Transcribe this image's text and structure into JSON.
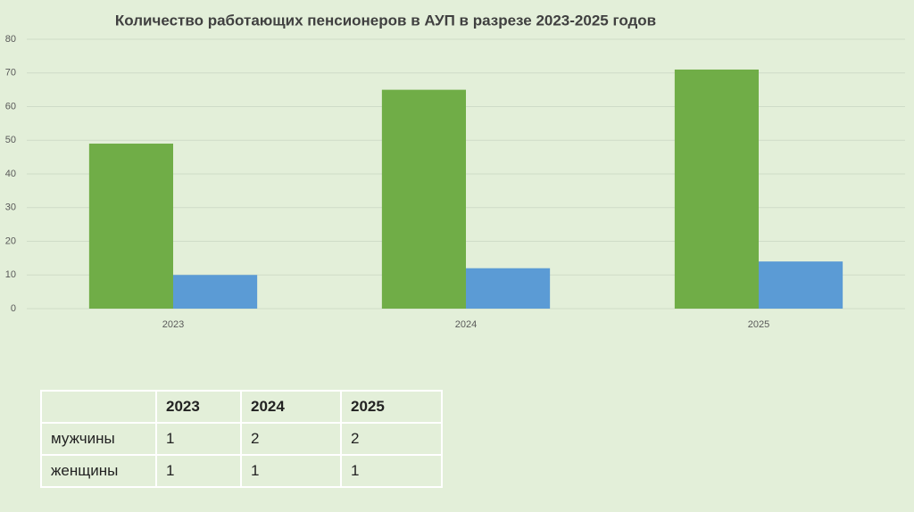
{
  "chart_data": {
    "type": "bar",
    "title": "Количество работающих пенсионеров в АУП в разрезе 2023-2025 годов",
    "categories": [
      "2023",
      "2024",
      "2025"
    ],
    "series": [
      {
        "color": "#70ad47",
        "values": [
          49,
          65,
          71
        ]
      },
      {
        "color": "#5b9bd5",
        "values": [
          10,
          12,
          14
        ]
      }
    ],
    "ylim": [
      0,
      80
    ],
    "yticks": [
      0,
      10,
      20,
      30,
      40,
      50,
      60,
      70,
      80
    ],
    "grid": true
  },
  "table": {
    "columns": [
      "2023",
      "2024",
      "2025"
    ],
    "rows": [
      {
        "label": "мужчины",
        "values": [
          1,
          2,
          2
        ]
      },
      {
        "label": "женщины",
        "values": [
          1,
          1,
          1
        ]
      }
    ]
  }
}
